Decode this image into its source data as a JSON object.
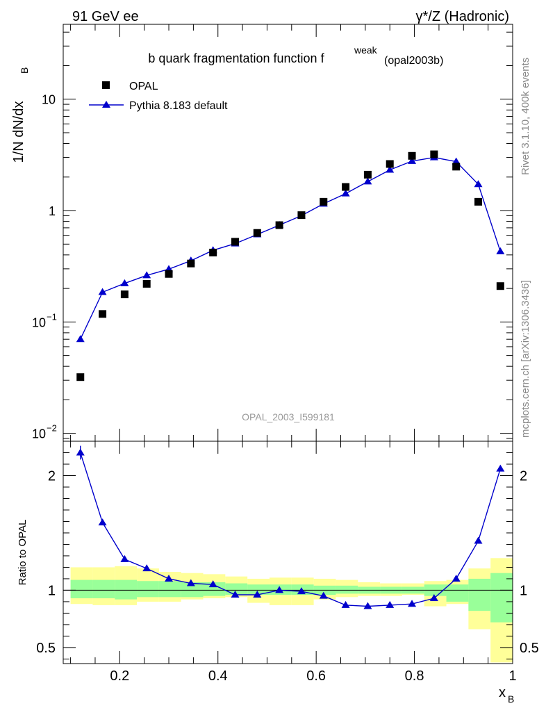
{
  "header": {
    "left": "91 GeV ee",
    "right": "γ*/Z (Hadronic)"
  },
  "side": {
    "rivet": "Rivet 3.1.10,  400k events",
    "site": "mcplots.cern.ch [arXiv:1306.3436]"
  },
  "chart_data": [
    {
      "type": "scatter",
      "title": "b quark fragmentation function f",
      "title_sup": "weak",
      "title_tag": "(opal2003b)",
      "watermark": "OPAL_2003_I599181",
      "ylabel": "1/N dN/dx",
      "ylabel_sub": "B",
      "yscale": "log",
      "xlim": [
        0.085,
        1.0
      ],
      "ylim": [
        0.0085,
        47
      ],
      "yticks": [
        {
          "v": 10,
          "label": "10",
          "sup": ""
        },
        {
          "v": 1,
          "label": "1",
          "sup": ""
        },
        {
          "v": 0.1,
          "label": "10",
          "sup": "−1"
        },
        {
          "v": 0.01,
          "label": "10",
          "sup": "−2"
        }
      ],
      "legend": [
        {
          "name": "OPAL",
          "marker": "square",
          "color": "#000000"
        },
        {
          "name": "Pythia 8.183 default",
          "marker": "triangle",
          "color": "#0000cc"
        }
      ],
      "x": [
        0.12,
        0.165,
        0.21,
        0.255,
        0.3,
        0.345,
        0.39,
        0.435,
        0.48,
        0.525,
        0.57,
        0.615,
        0.66,
        0.705,
        0.75,
        0.795,
        0.84,
        0.885,
        0.93,
        0.975
      ],
      "series": [
        {
          "name": "OPAL",
          "values": [
            0.032,
            0.118,
            0.177,
            0.22,
            0.27,
            0.335,
            0.42,
            0.525,
            0.63,
            0.74,
            0.91,
            1.2,
            1.63,
            2.1,
            2.62,
            3.1,
            3.2,
            2.48,
            1.2,
            0.21
          ]
        },
        {
          "name": "Pythia 8.183 default",
          "values": [
            0.07,
            0.185,
            0.222,
            0.262,
            0.298,
            0.355,
            0.44,
            0.505,
            0.61,
            0.74,
            0.9,
            1.15,
            1.42,
            1.82,
            2.32,
            2.78,
            3.0,
            2.75,
            1.72,
            0.43
          ]
        }
      ]
    },
    {
      "type": "line",
      "ylabel": "Ratio to OPAL",
      "xlabel": "x",
      "xlabel_sub": "B",
      "xlim": [
        0.085,
        1.0
      ],
      "ylim": [
        0.36,
        2.3
      ],
      "xticks": [
        0.2,
        0.4,
        0.6,
        0.8,
        1
      ],
      "xtick_labels": [
        "0.2",
        "0.4",
        "0.6",
        "0.8",
        "1"
      ],
      "yticks": [
        0.5,
        1,
        2
      ],
      "ytick_labels": [
        "0.5",
        "1",
        "2"
      ],
      "reference": 1,
      "x": [
        0.12,
        0.165,
        0.21,
        0.255,
        0.3,
        0.345,
        0.39,
        0.435,
        0.48,
        0.525,
        0.57,
        0.615,
        0.66,
        0.705,
        0.75,
        0.795,
        0.84,
        0.885,
        0.93,
        0.975
      ],
      "bin_edges": [
        0.1,
        0.145,
        0.19,
        0.235,
        0.28,
        0.325,
        0.37,
        0.415,
        0.46,
        0.505,
        0.55,
        0.595,
        0.64,
        0.685,
        0.73,
        0.775,
        0.82,
        0.865,
        0.91,
        0.955,
        1.0
      ],
      "band_inner": {
        "lo": [
          0.93,
          0.93,
          0.92,
          0.94,
          0.94,
          0.94,
          0.95,
          0.96,
          0.96,
          0.96,
          0.96,
          0.96,
          0.97,
          0.97,
          0.97,
          0.97,
          0.95,
          0.9,
          0.82,
          0.72
        ],
        "hi": [
          1.09,
          1.09,
          1.09,
          1.08,
          1.08,
          1.07,
          1.07,
          1.06,
          1.05,
          1.05,
          1.05,
          1.04,
          1.04,
          1.03,
          1.03,
          1.03,
          1.05,
          1.05,
          1.1,
          1.15
        ]
      },
      "band_outer": {
        "lo": [
          0.88,
          0.87,
          0.87,
          0.9,
          0.9,
          0.92,
          0.93,
          0.94,
          0.89,
          0.87,
          0.87,
          0.92,
          0.94,
          0.95,
          0.95,
          0.96,
          0.86,
          0.88,
          0.66,
          0.37
        ]
      },
      "band_outer_hi": [
        1.2,
        1.2,
        1.21,
        1.19,
        1.16,
        1.15,
        1.14,
        1.12,
        1.1,
        1.11,
        1.11,
        1.1,
        1.09,
        1.07,
        1.06,
        1.06,
        1.08,
        1.09,
        1.19,
        1.28
      ],
      "series": [
        {
          "name": "Pythia 8.183 default",
          "values": [
            2.2,
            1.59,
            1.27,
            1.19,
            1.1,
            1.06,
            1.05,
            0.96,
            0.96,
            1.0,
            0.99,
            0.95,
            0.87,
            0.86,
            0.87,
            0.88,
            0.93,
            1.1,
            1.43,
            2.06
          ]
        }
      ]
    }
  ]
}
